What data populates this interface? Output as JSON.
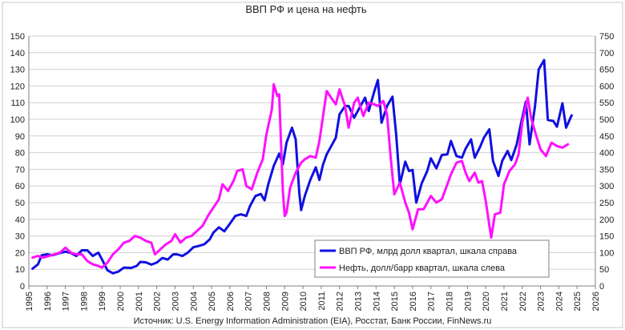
{
  "chart_data": {
    "type": "line",
    "title": "ВВП РФ и цена на нефть",
    "source": "Источник: U.S. Energy Information Administration (EIA), Росстат, Банк России, FinNews.ru",
    "grid": "horizontal",
    "legend_position": "lower-right",
    "x_axis": {
      "ticks": [
        1995,
        1996,
        1997,
        1998,
        1999,
        2000,
        2001,
        2002,
        2003,
        2004,
        2005,
        2006,
        2007,
        2008,
        2009,
        2010,
        2011,
        2012,
        2013,
        2014,
        2015,
        2016,
        2017,
        2018,
        2019,
        2020,
        2021,
        2022,
        2023,
        2024,
        2025,
        2026
      ],
      "range": [
        1995,
        2026
      ]
    },
    "y_left": {
      "range": [
        0,
        150
      ],
      "ticks": [
        0,
        10,
        20,
        30,
        40,
        50,
        60,
        70,
        80,
        90,
        100,
        110,
        120,
        130,
        140,
        150
      ]
    },
    "y_right": {
      "range": [
        0,
        750
      ],
      "ticks": [
        0,
        50,
        100,
        150,
        200,
        250,
        300,
        350,
        400,
        450,
        500,
        550,
        600,
        650,
        700,
        750
      ]
    },
    "series": [
      {
        "name": "ВВП РФ, млрд долл квартал, шкала справа",
        "axis": "right",
        "color": "#1010e0",
        "points": [
          [
            1995.2,
            52
          ],
          [
            1995.5,
            65
          ],
          [
            1995.7,
            92
          ],
          [
            1996.0,
            95
          ],
          [
            1996.3,
            92
          ],
          [
            1996.6,
            97
          ],
          [
            1997.0,
            103
          ],
          [
            1997.3,
            99
          ],
          [
            1997.6,
            90
          ],
          [
            1997.9,
            107
          ],
          [
            1998.2,
            107
          ],
          [
            1998.5,
            90
          ],
          [
            1998.8,
            100
          ],
          [
            1999.0,
            80
          ],
          [
            1999.3,
            47
          ],
          [
            1999.6,
            38
          ],
          [
            1999.9,
            43
          ],
          [
            2000.2,
            55
          ],
          [
            2000.6,
            54
          ],
          [
            2000.9,
            60
          ],
          [
            2001.1,
            72
          ],
          [
            2001.4,
            71
          ],
          [
            2001.7,
            64
          ],
          [
            2002.0,
            70
          ],
          [
            2002.3,
            84
          ],
          [
            2002.6,
            79
          ],
          [
            2002.9,
            95
          ],
          [
            2003.1,
            95
          ],
          [
            2003.4,
            90
          ],
          [
            2003.7,
            100
          ],
          [
            2004.0,
            116
          ],
          [
            2004.3,
            120
          ],
          [
            2004.6,
            125
          ],
          [
            2004.9,
            140
          ],
          [
            2005.1,
            160
          ],
          [
            2005.4,
            176
          ],
          [
            2005.7,
            164
          ],
          [
            2006.0,
            187
          ],
          [
            2006.3,
            210
          ],
          [
            2006.6,
            215
          ],
          [
            2006.9,
            210
          ],
          [
            2007.1,
            240
          ],
          [
            2007.4,
            270
          ],
          [
            2007.7,
            276
          ],
          [
            2007.9,
            257
          ],
          [
            2008.1,
            305
          ],
          [
            2008.4,
            360
          ],
          [
            2008.7,
            397
          ],
          [
            2008.9,
            365
          ],
          [
            2009.1,
            430
          ],
          [
            2009.4,
            475
          ],
          [
            2009.6,
            440
          ],
          [
            2009.8,
            280
          ],
          [
            2009.9,
            228
          ],
          [
            2010.1,
            270
          ],
          [
            2010.4,
            318
          ],
          [
            2010.7,
            356
          ],
          [
            2010.9,
            318
          ],
          [
            2011.1,
            365
          ],
          [
            2011.3,
            395
          ],
          [
            2011.6,
            425
          ],
          [
            2011.8,
            445
          ],
          [
            2012.0,
            515
          ],
          [
            2012.3,
            540
          ],
          [
            2012.5,
            540
          ],
          [
            2012.8,
            505
          ],
          [
            2013.1,
            535
          ],
          [
            2013.4,
            565
          ],
          [
            2013.6,
            525
          ],
          [
            2013.9,
            583
          ],
          [
            2014.1,
            618
          ],
          [
            2014.3,
            490
          ],
          [
            2014.6,
            540
          ],
          [
            2014.9,
            568
          ],
          [
            2015.1,
            455
          ],
          [
            2015.3,
            305
          ],
          [
            2015.6,
            373
          ],
          [
            2015.8,
            345
          ],
          [
            2016.0,
            348
          ],
          [
            2016.2,
            250
          ],
          [
            2016.5,
            308
          ],
          [
            2016.8,
            345
          ],
          [
            2017.0,
            383
          ],
          [
            2017.3,
            353
          ],
          [
            2017.6,
            393
          ],
          [
            2017.9,
            395
          ],
          [
            2018.1,
            435
          ],
          [
            2018.4,
            390
          ],
          [
            2018.7,
            385
          ],
          [
            2018.9,
            412
          ],
          [
            2019.2,
            440
          ],
          [
            2019.4,
            385
          ],
          [
            2019.7,
            418
          ],
          [
            2019.9,
            445
          ],
          [
            2020.2,
            470
          ],
          [
            2020.4,
            375
          ],
          [
            2020.7,
            330
          ],
          [
            2020.9,
            375
          ],
          [
            2021.2,
            405
          ],
          [
            2021.4,
            378
          ],
          [
            2021.7,
            425
          ],
          [
            2021.9,
            480
          ],
          [
            2022.2,
            553
          ],
          [
            2022.4,
            425
          ],
          [
            2022.7,
            540
          ],
          [
            2022.9,
            650
          ],
          [
            2023.2,
            678
          ],
          [
            2023.4,
            498
          ],
          [
            2023.7,
            495
          ],
          [
            2023.9,
            478
          ],
          [
            2024.2,
            548
          ],
          [
            2024.4,
            475
          ],
          [
            2024.7,
            512
          ]
        ]
      },
      {
        "name": "Нефть, долл/барр квартал, шкала слева",
        "axis": "left",
        "color": "#ff10ff",
        "points": [
          [
            1995.2,
            17
          ],
          [
            1995.5,
            18
          ],
          [
            1995.8,
            17
          ],
          [
            1996.1,
            18
          ],
          [
            1996.4,
            19
          ],
          [
            1996.7,
            20
          ],
          [
            1997.0,
            23
          ],
          [
            1997.3,
            20
          ],
          [
            1997.6,
            19
          ],
          [
            1997.9,
            19
          ],
          [
            1998.2,
            15
          ],
          [
            1998.5,
            13
          ],
          [
            1998.8,
            12
          ],
          [
            1999.0,
            11
          ],
          [
            1999.3,
            14
          ],
          [
            1999.6,
            19
          ],
          [
            1999.9,
            22
          ],
          [
            2000.2,
            26
          ],
          [
            2000.5,
            27
          ],
          [
            2000.8,
            30
          ],
          [
            2001.1,
            29
          ],
          [
            2001.4,
            27
          ],
          [
            2001.7,
            26
          ],
          [
            2001.9,
            19
          ],
          [
            2002.2,
            22
          ],
          [
            2002.5,
            25
          ],
          [
            2002.8,
            27
          ],
          [
            2003.0,
            31
          ],
          [
            2003.3,
            26
          ],
          [
            2003.6,
            29
          ],
          [
            2003.9,
            30
          ],
          [
            2004.2,
            33
          ],
          [
            2004.5,
            36
          ],
          [
            2004.8,
            42
          ],
          [
            2005.1,
            47
          ],
          [
            2005.4,
            52
          ],
          [
            2005.6,
            61
          ],
          [
            2005.9,
            57
          ],
          [
            2006.2,
            63
          ],
          [
            2006.4,
            69
          ],
          [
            2006.7,
            70
          ],
          [
            2006.9,
            60
          ],
          [
            2007.2,
            58
          ],
          [
            2007.5,
            68
          ],
          [
            2007.8,
            76
          ],
          [
            2008.0,
            91
          ],
          [
            2008.3,
            106
          ],
          [
            2008.4,
            121
          ],
          [
            2008.6,
            114
          ],
          [
            2008.7,
            115
          ],
          [
            2008.9,
            57
          ],
          [
            2009.0,
            42
          ],
          [
            2009.1,
            44
          ],
          [
            2009.3,
            59
          ],
          [
            2009.6,
            68
          ],
          [
            2009.9,
            74
          ],
          [
            2010.1,
            76
          ],
          [
            2010.4,
            78
          ],
          [
            2010.7,
            77
          ],
          [
            2010.9,
            87
          ],
          [
            2011.1,
            102
          ],
          [
            2011.3,
            117
          ],
          [
            2011.6,
            112
          ],
          [
            2011.8,
            109
          ],
          [
            2012.0,
            118
          ],
          [
            2012.3,
            108
          ],
          [
            2012.5,
            95
          ],
          [
            2012.8,
            110
          ],
          [
            2013.0,
            113
          ],
          [
            2013.3,
            102
          ],
          [
            2013.6,
            110
          ],
          [
            2013.9,
            109
          ],
          [
            2014.1,
            108
          ],
          [
            2014.4,
            111
          ],
          [
            2014.6,
            103
          ],
          [
            2014.8,
            77
          ],
          [
            2015.0,
            55
          ],
          [
            2015.3,
            62
          ],
          [
            2015.6,
            50
          ],
          [
            2015.8,
            44
          ],
          [
            2016.0,
            34
          ],
          [
            2016.3,
            46
          ],
          [
            2016.6,
            46
          ],
          [
            2016.8,
            50
          ],
          [
            2017.0,
            54
          ],
          [
            2017.3,
            50
          ],
          [
            2017.6,
            52
          ],
          [
            2017.9,
            61
          ],
          [
            2018.1,
            67
          ],
          [
            2018.4,
            74
          ],
          [
            2018.7,
            75
          ],
          [
            2018.9,
            68
          ],
          [
            2019.1,
            63
          ],
          [
            2019.4,
            68
          ],
          [
            2019.6,
            62
          ],
          [
            2019.8,
            63
          ],
          [
            2020.0,
            51
          ],
          [
            2020.3,
            29
          ],
          [
            2020.5,
            43
          ],
          [
            2020.8,
            44
          ],
          [
            2021.0,
            61
          ],
          [
            2021.3,
            69
          ],
          [
            2021.6,
            73
          ],
          [
            2021.8,
            79
          ],
          [
            2022.0,
            98
          ],
          [
            2022.3,
            113
          ],
          [
            2022.5,
            100
          ],
          [
            2022.8,
            89
          ],
          [
            2023.0,
            82
          ],
          [
            2023.3,
            78
          ],
          [
            2023.6,
            86
          ],
          [
            2023.9,
            84
          ],
          [
            2024.2,
            83
          ],
          [
            2024.5,
            85
          ]
        ]
      }
    ]
  }
}
